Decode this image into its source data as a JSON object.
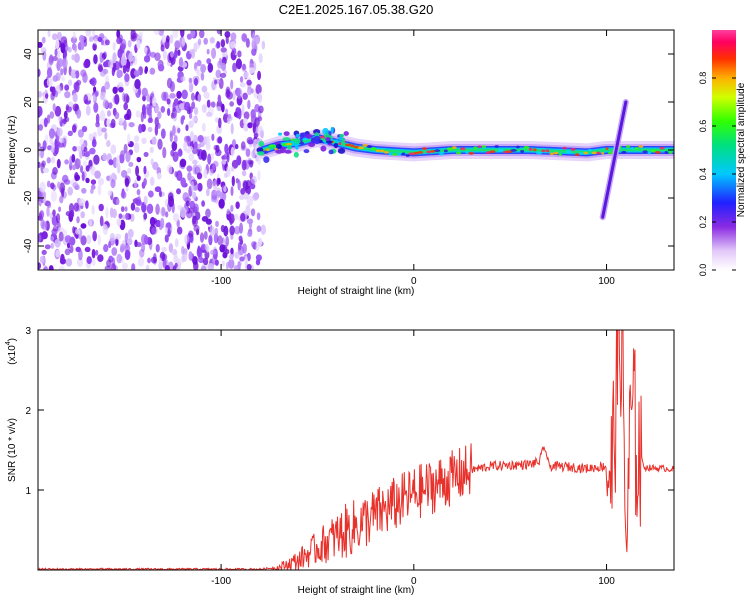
{
  "title": "C2E1.2025.167.05.38.G20",
  "chart_data": [
    {
      "type": "heatmap",
      "xlabel": "Height of straight line (km)",
      "ylabel": "Frequency (Hz)",
      "xlim": [
        -195,
        135
      ],
      "ylim": [
        -50,
        50
      ],
      "x_ticks": [
        -100,
        0,
        100
      ],
      "y_ticks": [
        -40,
        -20,
        0,
        20,
        40
      ],
      "colorbar": {
        "label": "Normalized spectral amplitude",
        "range": [
          0,
          1
        ],
        "ticks": [
          "0.0",
          "0.2",
          "0.4",
          "0.6",
          "0.8"
        ]
      },
      "features": {
        "noise_region_x": [
          -195,
          -78
        ],
        "signal_start_x": -78,
        "carrier_track": [
          [
            -78,
            0
          ],
          [
            -70,
            2
          ],
          [
            -60,
            3
          ],
          [
            -50,
            5
          ],
          [
            -40,
            3
          ],
          [
            -30,
            1
          ],
          [
            -20,
            0
          ],
          [
            0,
            -1
          ],
          [
            20,
            0
          ],
          [
            60,
            0
          ],
          [
            90,
            -1
          ],
          [
            100,
            0
          ],
          [
            135,
            0
          ]
        ],
        "diagonal_streak": [
          [
            98,
            -28
          ],
          [
            110,
            20
          ]
        ]
      }
    },
    {
      "type": "line",
      "xlabel": "Height of straight line (km)",
      "ylabel": "SNR (10 * v/v)",
      "yscale_label": "(x10",
      "yscale_exp": "4",
      "xlim": [
        -195,
        135
      ],
      "ylim": [
        0,
        3
      ],
      "x_ticks": [
        -100,
        0,
        100
      ],
      "y_ticks": [
        1,
        2,
        3
      ],
      "series": [
        {
          "color": "#e8312b",
          "x": [
            -195,
            -80,
            -70,
            -60,
            -50,
            -40,
            -30,
            -20,
            -10,
            0,
            10,
            20,
            30,
            40,
            50,
            60,
            65,
            68,
            70,
            80,
            90,
            100,
            103,
            106,
            108,
            110,
            113,
            116,
            120,
            130,
            135
          ],
          "y": [
            0.01,
            0.01,
            0.03,
            0.12,
            0.28,
            0.42,
            0.55,
            0.68,
            0.82,
            0.95,
            1.05,
            1.15,
            1.25,
            1.3,
            1.31,
            1.32,
            1.35,
            1.55,
            1.3,
            1.29,
            1.27,
            1.3,
            1.2,
            2.8,
            3.0,
            0.3,
            2.0,
            1.5,
            1.28,
            1.27,
            1.26
          ]
        }
      ]
    }
  ]
}
